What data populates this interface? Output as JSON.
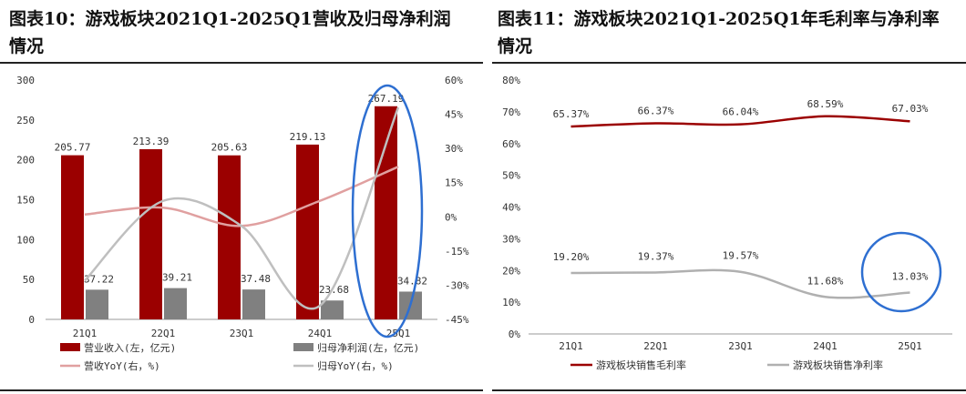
{
  "left": {
    "title_line1": "图表10：游戏板块2021Q1-2025Q1营收及归母净利润",
    "title_line2": "情况",
    "chart_data": {
      "type": "bar",
      "categories": [
        "21Q1",
        "22Q1",
        "23Q1",
        "24Q1",
        "25Q1"
      ],
      "ylim": [
        0,
        300
      ],
      "yticks": [
        "0",
        "50",
        "100",
        "150",
        "200",
        "250",
        "300"
      ],
      "y2lim": [
        -45,
        60
      ],
      "y2ticks": [
        "-45%",
        "-30%",
        "-15%",
        "0%",
        "15%",
        "30%",
        "45%",
        "60%"
      ],
      "bar_series": [
        {
          "name": "营业收入(左，亿元)",
          "color": "#9b0000",
          "values": [
            205.77,
            213.39,
            205.63,
            219.13,
            267.19
          ],
          "labels": [
            "205.77",
            "213.39",
            "205.63",
            "219.13",
            "267.19"
          ]
        },
        {
          "name": "归母净利润(左，亿元)",
          "color": "#808080",
          "values": [
            37.22,
            39.21,
            37.48,
            23.68,
            34.82
          ],
          "labels": [
            "37.22",
            "39.21",
            "37.48",
            "23.68",
            "34.82"
          ]
        }
      ],
      "line_series": [
        {
          "name": "营收YoY(右，%)",
          "color": "#e0a0a0",
          "values": [
            1,
            4,
            -4,
            7,
            22
          ]
        },
        {
          "name": "归母YoY(右，%)",
          "color": "#bfbfbf",
          "values": [
            -28,
            7,
            -4,
            -39,
            48
          ]
        }
      ],
      "legend_position": "bottom"
    }
  },
  "right": {
    "title_line1": "图表11：游戏板块2021Q1-2025Q1年毛利率与净利率",
    "title_line2": "情况",
    "chart_data": {
      "type": "line",
      "categories": [
        "21Q1",
        "22Q1",
        "23Q1",
        "24Q1",
        "25Q1"
      ],
      "ylim": [
        0,
        80
      ],
      "yticks": [
        "0%",
        "10%",
        "20%",
        "30%",
        "40%",
        "50%",
        "60%",
        "70%",
        "80%"
      ],
      "series": [
        {
          "name": "游戏板块销售毛利率",
          "color": "#9b0000",
          "values": [
            65.37,
            66.37,
            66.04,
            68.59,
            67.03
          ],
          "labels": [
            "65.37%",
            "66.37%",
            "66.04%",
            "68.59%",
            "67.03%"
          ]
        },
        {
          "name": "游戏板块销售净利率",
          "color": "#b0b0b0",
          "values": [
            19.2,
            19.37,
            19.57,
            11.68,
            13.03
          ],
          "labels": [
            "19.20%",
            "19.37%",
            "19.57%",
            "11.68%",
            "13.03%"
          ]
        }
      ],
      "legend_position": "bottom"
    }
  },
  "annotation_color": "#2e6fd1"
}
